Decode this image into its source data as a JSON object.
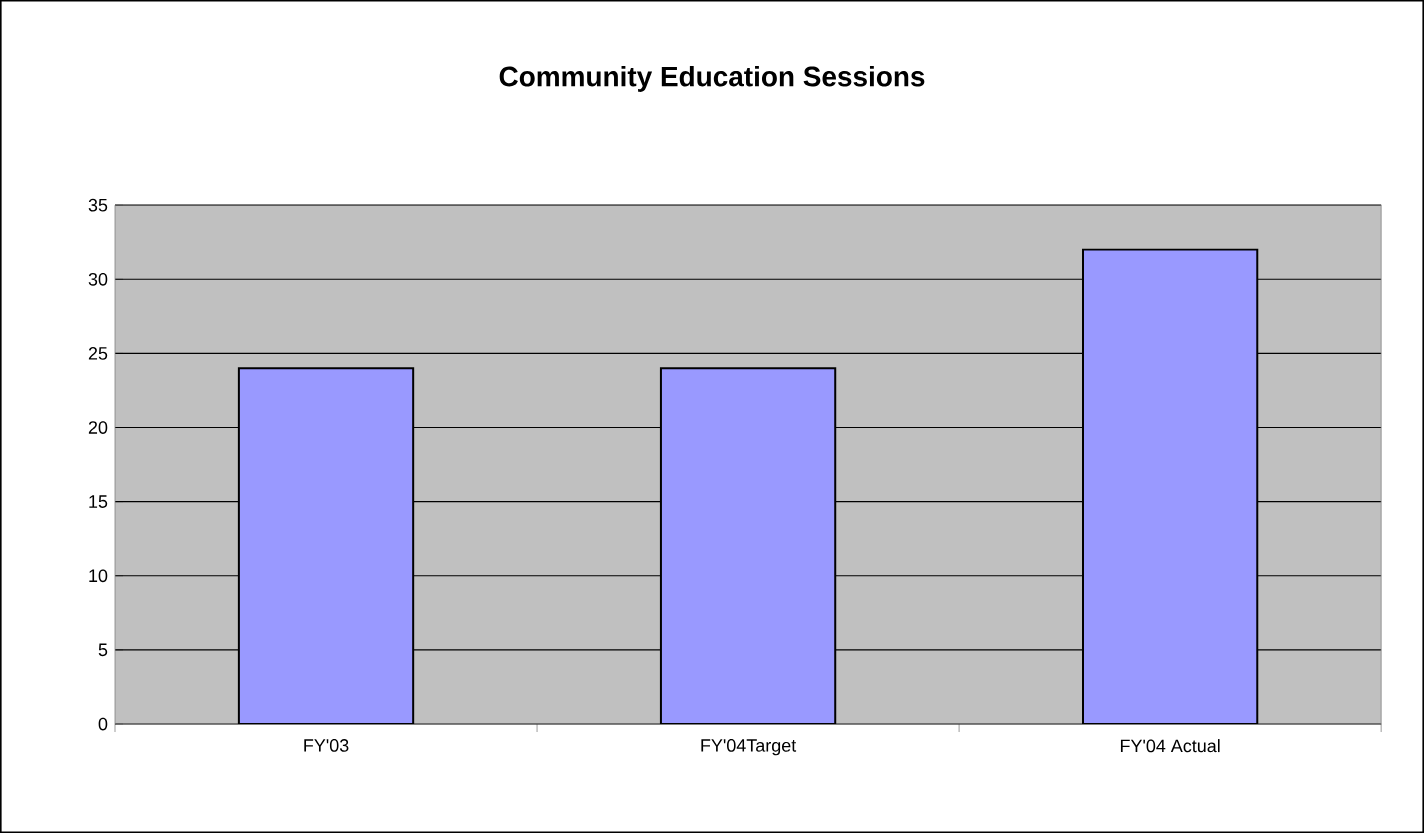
{
  "chart_data": {
    "type": "bar",
    "title": "Community Education Sessions",
    "categories": [
      "FY'03",
      "FY'04Target",
      "FY'04 Actual"
    ],
    "values": [
      24,
      24,
      32
    ],
    "color": "#9999ff",
    "ylim": [
      0,
      35
    ],
    "yticks": [
      0,
      5,
      10,
      15,
      20,
      25,
      30,
      35
    ],
    "grid": "y"
  }
}
